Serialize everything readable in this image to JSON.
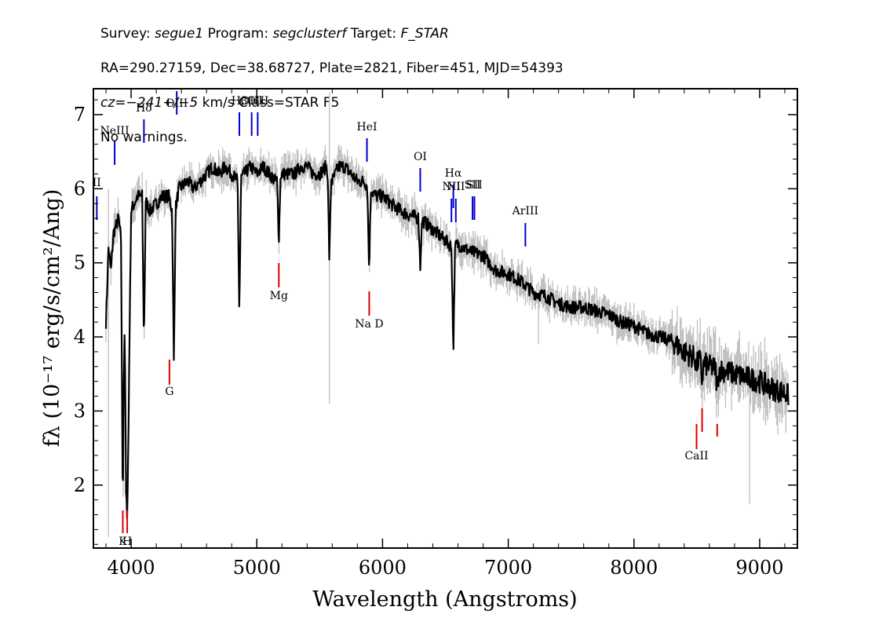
{
  "header": {
    "survey_label": "Survey: ",
    "survey": "segue1",
    "program_label": " Program: ",
    "program": "segclusterf",
    "target_label": " Target: ",
    "target": "F_STAR",
    "line2": "RA=290.27159, Dec=38.68727, Plate=2821, Fiber=451, MJD=54393",
    "cz_label": "cz=",
    "cz_value": "−241+/−5",
    "cz_rest": " km/s Class=STAR F5",
    "line4": "No warnings."
  },
  "colors": {
    "flux": "#000000",
    "error": "#bebebe",
    "emission": "#0000cc",
    "absorption": "#dd0000"
  },
  "chart_data": {
    "type": "line",
    "title": "",
    "xlabel": "Wavelength (Angstroms)",
    "ylabel": "fλ (10⁻¹⁷ erg/s/cm²/Ang)",
    "xlim": [
      3700,
      9300
    ],
    "ylim": [
      1.15,
      7.35
    ],
    "xticks": [
      4000,
      5000,
      6000,
      7000,
      8000,
      9000
    ],
    "yticks": [
      2,
      3,
      4,
      5,
      6,
      7
    ],
    "xtick_labels": [
      "4000",
      "5000",
      "6000",
      "7000",
      "8000",
      "9000"
    ],
    "ytick_labels": [
      "2",
      "3",
      "4",
      "5",
      "6",
      "7"
    ],
    "series": [
      {
        "x": [
          3800,
          3820,
          3840,
          3860,
          3880,
          3900,
          3920,
          3940,
          3960,
          3980,
          4000,
          4050,
          4100,
          4150,
          4200,
          4250,
          4300,
          4340,
          4380,
          4450,
          4500,
          4550,
          4600,
          4650,
          4700,
          4750,
          4800,
          4850,
          4900,
          4950,
          5000,
          5050,
          5100,
          5150,
          5200,
          5250,
          5300,
          5350,
          5400,
          5450,
          5500,
          5550,
          5600,
          5650,
          5700,
          5750,
          5800,
          5850,
          5900,
          5950,
          6000,
          6100,
          6200,
          6300,
          6400,
          6500,
          6560,
          6600,
          6700,
          6800,
          6900,
          7000,
          7100,
          7200,
          7300,
          7400,
          7500,
          7600,
          7700,
          7800,
          7900,
          8000,
          8100,
          8200,
          8300,
          8400,
          8500,
          8600,
          8700,
          8800,
          8900,
          9000,
          9100,
          9200,
          9230
        ],
        "y": [
          4.2,
          5.2,
          4.9,
          5.4,
          5.5,
          5.6,
          5.3,
          5.3,
          2.2,
          3.0,
          5.7,
          5.9,
          5.9,
          5.7,
          5.8,
          5.9,
          5.9,
          5.6,
          6.0,
          6.1,
          6.0,
          6.1,
          6.2,
          6.3,
          6.2,
          6.3,
          6.2,
          6.1,
          6.2,
          6.3,
          6.2,
          6.3,
          6.2,
          6.1,
          6.2,
          6.2,
          6.2,
          6.3,
          6.3,
          6.2,
          6.2,
          6.3,
          6.1,
          6.3,
          6.3,
          6.2,
          6.1,
          6.1,
          6.0,
          5.9,
          5.9,
          5.75,
          5.65,
          5.6,
          5.45,
          5.3,
          5.2,
          5.25,
          5.15,
          5.1,
          4.9,
          4.85,
          4.75,
          4.6,
          4.55,
          4.45,
          4.4,
          4.4,
          4.35,
          4.3,
          4.2,
          4.15,
          4.05,
          4.0,
          3.95,
          3.8,
          3.7,
          3.6,
          3.55,
          3.5,
          3.45,
          3.4,
          3.3,
          3.25,
          3.2
        ]
      }
    ],
    "absorption_features": [
      {
        "x": 3934,
        "y": 1.6
      },
      {
        "x": 3969,
        "y": 1.6
      },
      {
        "x": 4102,
        "y": 3.9
      },
      {
        "x": 4340,
        "y": 3.65
      },
      {
        "x": 4861,
        "y": 4.3
      },
      {
        "x": 5175,
        "y": 5.3
      },
      {
        "x": 5577,
        "y": 5.0
      },
      {
        "x": 5893,
        "y": 4.9
      },
      {
        "x": 6300,
        "y": 4.95
      },
      {
        "x": 6563,
        "y": 3.8
      },
      {
        "x": 8498,
        "y": 3.6
      },
      {
        "x": 8542,
        "y": 3.4
      },
      {
        "x": 8662,
        "y": 3.3
      }
    ],
    "emission_lines": [
      {
        "label": "II",
        "x": 3727
      },
      {
        "label": "NeIII",
        "x": 3869
      },
      {
        "label": "Hδ",
        "x": 4102
      },
      {
        "label": "OIII",
        "x": 4363
      },
      {
        "label": "Hβ",
        "x": 4861
      },
      {
        "label": "OIII",
        "x": 4959
      },
      {
        "label": "OIII",
        "x": 5007
      },
      {
        "label": "HeI",
        "x": 5876
      },
      {
        "label": "OI",
        "x": 6300
      },
      {
        "label": "NII",
        "x": 6548
      },
      {
        "label": "Hα",
        "x": 6563
      },
      {
        "label": "NII",
        "x": 6583
      },
      {
        "label": "SII",
        "x": 6716
      },
      {
        "label": "SII",
        "x": 6731
      },
      {
        "label": "ArIII",
        "x": 7136
      }
    ],
    "absorption_lines": [
      {
        "label": "K",
        "x": 3934
      },
      {
        "label": "H",
        "x": 3969
      },
      {
        "label": "G",
        "x": 4305
      },
      {
        "label": "Mg",
        "x": 5175
      },
      {
        "label": "Na D",
        "x": 5894
      },
      {
        "label": "CaII",
        "x": 8498
      },
      {
        "label": "",
        "x": 8542
      },
      {
        "label": "",
        "x": 8662
      }
    ]
  }
}
